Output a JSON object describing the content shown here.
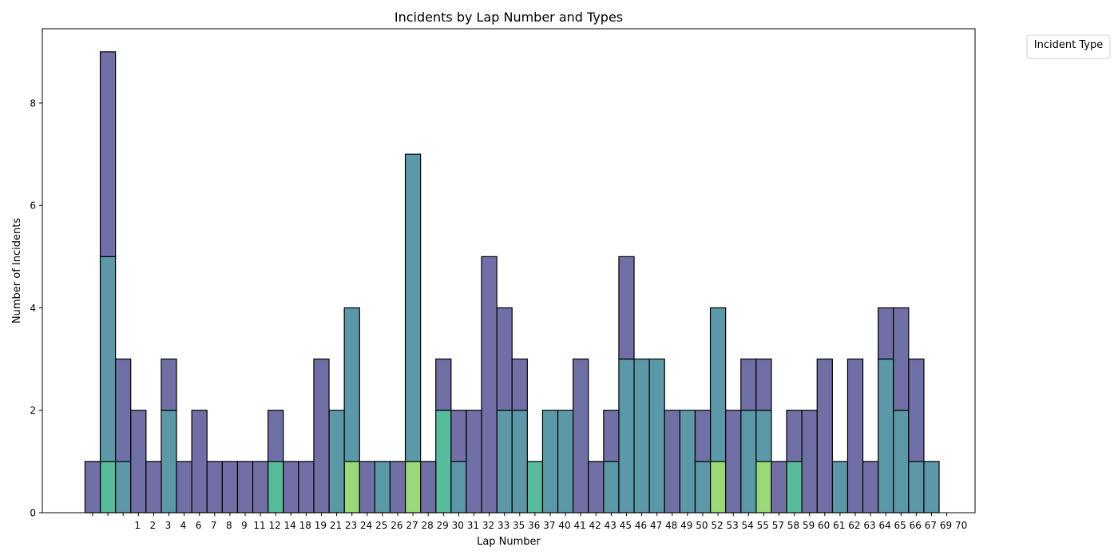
{
  "chart_data": {
    "type": "bar",
    "stacked": true,
    "title": "Incidents by Lap Number and Types",
    "xlabel": "Lap Number",
    "ylabel": "Number of Incidents",
    "ylim": [
      0,
      9.45
    ],
    "yticks": [
      0,
      2,
      4,
      6,
      8
    ],
    "grid": false,
    "legend": {
      "title": "Incident Type",
      "placement": "upper-right outside",
      "entries": []
    },
    "categories": [
      "",
      "",
      "1",
      "2",
      "3",
      "4",
      "6",
      "7",
      "8",
      "9",
      "11",
      "12",
      "14",
      "18",
      "19",
      "21",
      "23",
      "24",
      "25",
      "26",
      "27",
      "28",
      "29",
      "30",
      "31",
      "32",
      "33",
      "35",
      "36",
      "37",
      "40",
      "41",
      "42",
      "43",
      "45",
      "46",
      "47",
      "48",
      "49",
      "50",
      "52",
      "53",
      "54",
      "55",
      "57",
      "58",
      "59",
      "60",
      "61",
      "62",
      "63",
      "64",
      "65",
      "66",
      "67",
      "69",
      "70"
    ],
    "colors": {
      "type_a": "#7070a6",
      "type_b": "#5c98a8",
      "type_c": "#58bc9c",
      "type_d": "#9ad97a",
      "edge": "#000000"
    },
    "series": [
      {
        "name": "type_d",
        "color": "#9ad97a",
        "values": [
          0,
          0,
          0,
          0,
          0,
          0,
          0,
          0,
          0,
          0,
          0,
          0,
          0,
          0,
          0,
          0,
          0,
          1,
          0,
          0,
          0,
          1,
          0,
          0,
          0,
          0,
          0,
          0,
          0,
          0,
          0,
          0,
          0,
          0,
          0,
          0,
          0,
          0,
          0,
          0,
          0,
          1,
          0,
          0,
          1,
          0,
          0,
          0,
          0,
          0,
          0,
          0,
          0,
          0,
          0,
          0,
          0
        ]
      },
      {
        "name": "type_c",
        "color": "#58bc9c",
        "values": [
          0,
          1,
          0,
          0,
          0,
          0,
          0,
          0,
          0,
          0,
          0,
          0,
          1,
          0,
          0,
          0,
          0,
          0,
          0,
          0,
          0,
          0,
          0,
          2,
          0,
          0,
          0,
          0,
          0,
          1,
          0,
          0,
          0,
          0,
          0,
          0,
          0,
          0,
          0,
          0,
          0,
          0,
          0,
          0,
          0,
          0,
          1,
          0,
          0,
          0,
          0,
          0,
          0,
          0,
          0,
          0,
          0
        ]
      },
      {
        "name": "type_b",
        "color": "#5c98a8",
        "values": [
          0,
          4,
          1,
          0,
          0,
          2,
          0,
          0,
          0,
          0,
          0,
          0,
          0,
          0,
          0,
          0,
          2,
          3,
          0,
          1,
          0,
          6,
          0,
          0,
          1,
          0,
          0,
          2,
          2,
          0,
          2,
          2,
          0,
          0,
          1,
          3,
          3,
          3,
          0,
          2,
          1,
          3,
          0,
          2,
          1,
          0,
          0,
          0,
          0,
          1,
          0,
          0,
          3,
          2,
          1,
          1,
          0
        ]
      },
      {
        "name": "type_a",
        "color": "#7070a6",
        "values": [
          1,
          4,
          2,
          2,
          1,
          1,
          1,
          2,
          1,
          1,
          1,
          1,
          1,
          1,
          1,
          3,
          0,
          0,
          1,
          0,
          1,
          0,
          1,
          1,
          1,
          2,
          5,
          2,
          1,
          0,
          0,
          0,
          3,
          1,
          1,
          2,
          0,
          0,
          2,
          0,
          1,
          0,
          2,
          1,
          1,
          1,
          1,
          2,
          3,
          0,
          3,
          1,
          1,
          2,
          2,
          0,
          0
        ]
      }
    ]
  }
}
